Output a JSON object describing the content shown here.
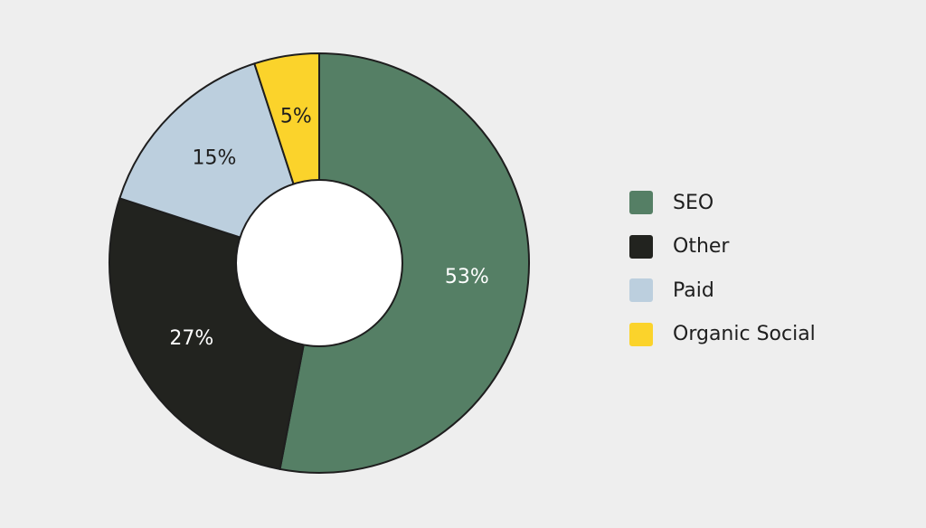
{
  "chart_data": {
    "type": "pie",
    "donut": true,
    "categories": [
      "SEO",
      "Other",
      "Paid",
      "Organic Social"
    ],
    "values": [
      53,
      27,
      15,
      5
    ],
    "data_labels": [
      "53%",
      "27%",
      "15%",
      "5%"
    ],
    "colors": [
      "#557f65",
      "#22231f",
      "#bccfde",
      "#fbd32b"
    ],
    "label_colors": [
      "#ffffff",
      "#ffffff",
      "#1e1e1e",
      "#1e1e1e"
    ],
    "legend_position": "right",
    "start_angle": "top",
    "direction": "clockwise"
  }
}
